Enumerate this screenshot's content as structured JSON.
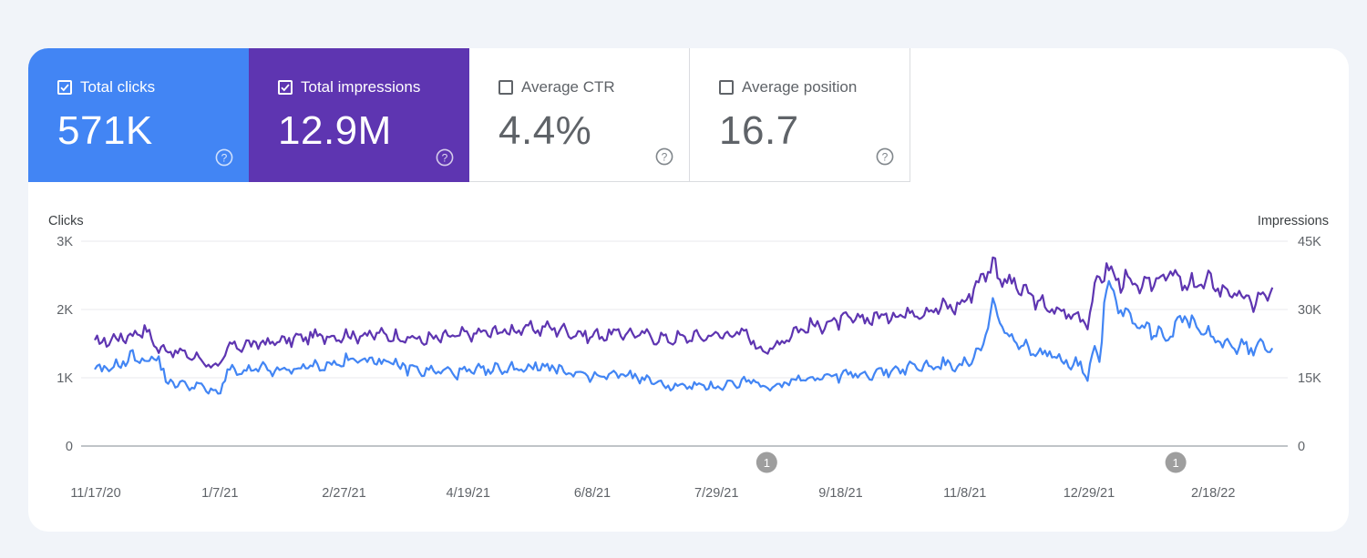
{
  "metrics": {
    "clicks": {
      "label": "Total clicks",
      "value": "571K",
      "checked": true,
      "color": "#4285f4"
    },
    "impressions": {
      "label": "Total impressions",
      "value": "12.9M",
      "checked": true,
      "color": "#5e35b1"
    },
    "ctr": {
      "label": "Average CTR",
      "value": "4.4%",
      "checked": false
    },
    "position": {
      "label": "Average position",
      "value": "16.7",
      "checked": false
    }
  },
  "chart_data": {
    "type": "line",
    "title": "",
    "left_axis_label": "Clicks",
    "right_axis_label": "Impressions",
    "left_ticks": [
      "0",
      "1K",
      "2K",
      "3K"
    ],
    "right_ticks": [
      "0",
      "15K",
      "30K",
      "45K"
    ],
    "left_range": [
      0,
      3000
    ],
    "right_range": [
      0,
      45000
    ],
    "grid": true,
    "x_ticks": [
      "11/17/20",
      "1/7/21",
      "2/27/21",
      "4/19/21",
      "6/8/21",
      "7/29/21",
      "9/18/21",
      "11/8/21",
      "12/29/21",
      "2/18/22"
    ],
    "x_range": [
      "2020-11-17",
      "2022-03-16"
    ],
    "annotations": [
      {
        "date": "2021-08-20",
        "label": "1"
      },
      {
        "date": "2022-02-04",
        "label": "1"
      }
    ],
    "series": [
      {
        "name": "Clicks",
        "axis": "left",
        "color": "#4285f4",
        "points": [
          [
            "2020-11-17",
            1080
          ],
          [
            "2020-11-26",
            1180
          ],
          [
            "2020-12-03",
            1310
          ],
          [
            "2020-12-10",
            1240
          ],
          [
            "2020-12-13",
            1340
          ],
          [
            "2020-12-16",
            950
          ],
          [
            "2020-12-23",
            900
          ],
          [
            "2020-12-30",
            880
          ],
          [
            "2021-01-07",
            750
          ],
          [
            "2021-01-10",
            1100
          ],
          [
            "2021-01-17",
            1070
          ],
          [
            "2021-01-24",
            1130
          ],
          [
            "2021-02-01",
            1090
          ],
          [
            "2021-02-13",
            1160
          ],
          [
            "2021-02-24",
            1200
          ],
          [
            "2021-03-08",
            1290
          ],
          [
            "2021-03-20",
            1190
          ],
          [
            "2021-04-01",
            1100
          ],
          [
            "2021-04-19",
            1080
          ],
          [
            "2021-05-05",
            1130
          ],
          [
            "2021-05-21",
            1180
          ],
          [
            "2021-06-08",
            1000
          ],
          [
            "2021-06-24",
            1050
          ],
          [
            "2021-07-10",
            880
          ],
          [
            "2021-07-29",
            870
          ],
          [
            "2021-08-14",
            960
          ],
          [
            "2021-08-20",
            820
          ],
          [
            "2021-09-01",
            990
          ],
          [
            "2021-09-18",
            1030
          ],
          [
            "2021-10-04",
            1070
          ],
          [
            "2021-10-20",
            1160
          ],
          [
            "2021-11-08",
            1200
          ],
          [
            "2021-11-16",
            1350
          ],
          [
            "2021-11-21",
            2080
          ],
          [
            "2021-11-24",
            1750
          ],
          [
            "2021-12-02",
            1450
          ],
          [
            "2021-12-14",
            1330
          ],
          [
            "2021-12-26",
            1200
          ],
          [
            "2021-12-30",
            1040
          ],
          [
            "2022-01-02",
            1530
          ],
          [
            "2022-01-04",
            1200
          ],
          [
            "2022-01-06",
            2450
          ],
          [
            "2022-01-12",
            2050
          ],
          [
            "2022-01-21",
            1750
          ],
          [
            "2022-02-01",
            1620
          ],
          [
            "2022-02-07",
            1880
          ],
          [
            "2022-02-18",
            1580
          ],
          [
            "2022-03-01",
            1460
          ],
          [
            "2022-03-08",
            1420
          ],
          [
            "2022-03-16",
            1510
          ]
        ]
      },
      {
        "name": "Impressions",
        "axis": "right",
        "color": "#5e35b1",
        "points": [
          [
            "2020-11-17",
            22500
          ],
          [
            "2020-11-26",
            23700
          ],
          [
            "2020-12-03",
            24500
          ],
          [
            "2020-12-07",
            26000
          ],
          [
            "2020-12-13",
            21500
          ],
          [
            "2020-12-20",
            20800
          ],
          [
            "2020-12-30",
            19200
          ],
          [
            "2021-01-07",
            17000
          ],
          [
            "2021-01-11",
            21800
          ],
          [
            "2021-01-20",
            22300
          ],
          [
            "2021-02-01",
            23000
          ],
          [
            "2021-02-13",
            24000
          ],
          [
            "2021-02-27",
            24300
          ],
          [
            "2021-03-15",
            24500
          ],
          [
            "2021-04-01",
            23300
          ],
          [
            "2021-04-19",
            24500
          ],
          [
            "2021-05-08",
            25500
          ],
          [
            "2021-05-24",
            26000
          ],
          [
            "2021-06-08",
            24200
          ],
          [
            "2021-06-24",
            24900
          ],
          [
            "2021-07-10",
            23500
          ],
          [
            "2021-07-29",
            24300
          ],
          [
            "2021-08-10",
            25000
          ],
          [
            "2021-08-20",
            20600
          ],
          [
            "2021-09-01",
            25500
          ],
          [
            "2021-09-18",
            27400
          ],
          [
            "2021-10-04",
            28300
          ],
          [
            "2021-10-20",
            29600
          ],
          [
            "2021-11-08",
            31000
          ],
          [
            "2021-11-21",
            40500
          ],
          [
            "2021-11-24",
            37000
          ],
          [
            "2021-12-02",
            34500
          ],
          [
            "2021-12-14",
            30000
          ],
          [
            "2021-12-26",
            28500
          ],
          [
            "2021-12-30",
            27700
          ],
          [
            "2022-01-03",
            36500
          ],
          [
            "2022-01-06",
            39000
          ],
          [
            "2022-01-12",
            36500
          ],
          [
            "2022-01-21",
            34500
          ],
          [
            "2022-02-01",
            38500
          ],
          [
            "2022-02-07",
            35000
          ],
          [
            "2022-02-18",
            36000
          ],
          [
            "2022-03-01",
            33000
          ],
          [
            "2022-03-08",
            31500
          ],
          [
            "2022-03-16",
            34300
          ]
        ]
      }
    ]
  }
}
